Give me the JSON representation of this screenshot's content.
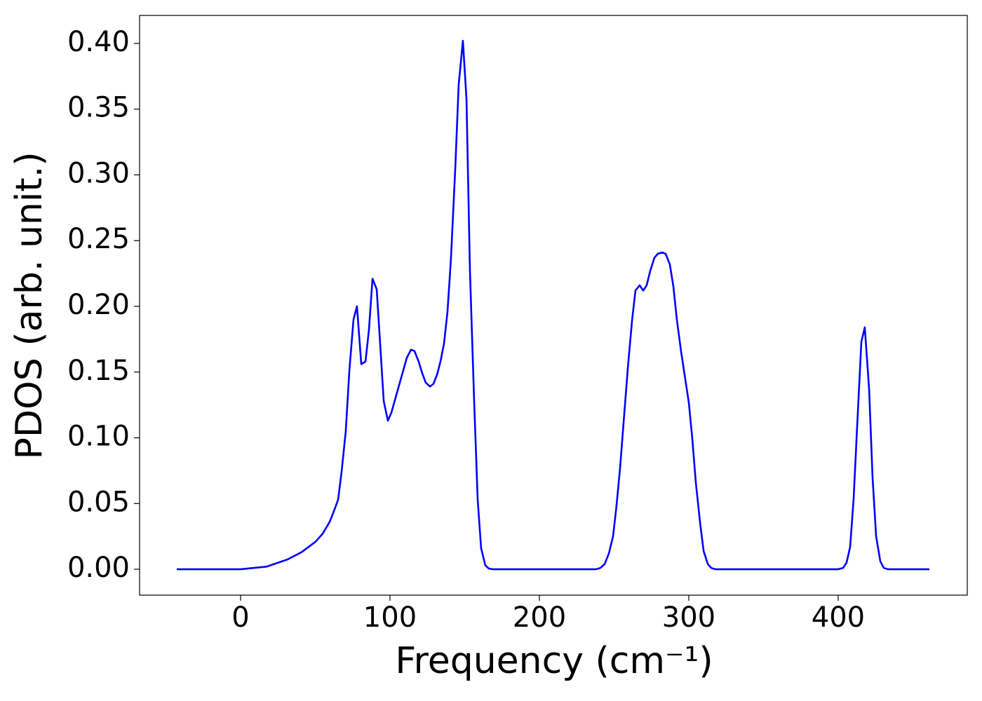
{
  "chart_data": {
    "type": "line",
    "xlabel": "Frequency (cm⁻¹)",
    "ylabel": "PDOS (arb. unit.)",
    "x": [
      -42.7,
      0,
      17.4,
      31.5,
      40.8,
      50.2,
      54.9,
      59.6,
      62.4,
      65.3,
      67.6,
      70.4,
      72.8,
      75.6,
      77.9,
      80.8,
      83.6,
      85.9,
      88.3,
      91.1,
      93.4,
      95.8,
      98.6,
      100.9,
      106.1,
      111.3,
      114.1,
      116.4,
      119.2,
      121.6,
      123.9,
      126.8,
      129.1,
      131.5,
      133.8,
      136.2,
      138.5,
      140.8,
      143.7,
      146.0,
      148.8,
      151.2,
      153.5,
      156.3,
      158.7,
      161.0,
      163.8,
      166.2,
      169.0,
      238.0,
      240.8,
      243.7,
      246.5,
      249.3,
      251.6,
      254.0,
      256.8,
      259.2,
      262.0,
      264.3,
      267.1,
      269.5,
      271.8,
      274.2,
      277.0,
      279.3,
      282.2,
      284.5,
      287.3,
      289.7,
      292.0,
      294.8,
      297.2,
      300.0,
      302.3,
      304.7,
      307.5,
      309.9,
      312.7,
      315.0,
      317.8,
      400.0,
      403.3,
      405.6,
      408.0,
      410.3,
      413.1,
      415.5,
      417.8,
      420.7,
      423.0,
      425.4,
      428.2,
      430.5,
      433.3,
      461.0
    ],
    "series": [
      {
        "name": "PDOS",
        "color": "#0000ff",
        "values": [
          0,
          0,
          0.002,
          0.0075,
          0.013,
          0.021,
          0.027,
          0.036,
          0.044,
          0.053,
          0.074,
          0.105,
          0.151,
          0.19,
          0.2,
          0.156,
          0.158,
          0.182,
          0.221,
          0.213,
          0.172,
          0.128,
          0.113,
          0.119,
          0.14,
          0.161,
          0.167,
          0.166,
          0.158,
          0.149,
          0.142,
          0.139,
          0.141,
          0.148,
          0.158,
          0.172,
          0.196,
          0.236,
          0.305,
          0.369,
          0.402,
          0.358,
          0.228,
          0.129,
          0.053,
          0.016,
          0.003,
          0.0005,
          0,
          0,
          0.001,
          0.004,
          0.012,
          0.025,
          0.048,
          0.077,
          0.118,
          0.153,
          0.189,
          0.212,
          0.216,
          0.212,
          0.216,
          0.227,
          0.237,
          0.24,
          0.241,
          0.24,
          0.232,
          0.215,
          0.19,
          0.166,
          0.148,
          0.127,
          0.1,
          0.066,
          0.036,
          0.014,
          0.004,
          0.001,
          0,
          0,
          0.001,
          0.005,
          0.017,
          0.053,
          0.118,
          0.173,
          0.184,
          0.137,
          0.07,
          0.025,
          0.006,
          0.001,
          0,
          0
        ]
      }
    ],
    "xlim": [
      -67.6,
      486.4
    ],
    "xticks": [
      0,
      100,
      200,
      300,
      400
    ],
    "ylim": [
      -0.0197,
      0.4213
    ],
    "yticks": [
      {
        "value": 0,
        "label": "0.00"
      },
      {
        "value": 0.05,
        "label": "0.05"
      },
      {
        "value": 0.1,
        "label": "0.10"
      },
      {
        "value": 0.15,
        "label": "0.15"
      },
      {
        "value": 0.2,
        "label": "0.20"
      },
      {
        "value": 0.25,
        "label": "0.25"
      },
      {
        "value": 0.3,
        "label": "0.30"
      },
      {
        "value": 0.35,
        "label": "0.35"
      },
      {
        "value": 0.4,
        "label": "0.40"
      }
    ],
    "grid": false
  }
}
